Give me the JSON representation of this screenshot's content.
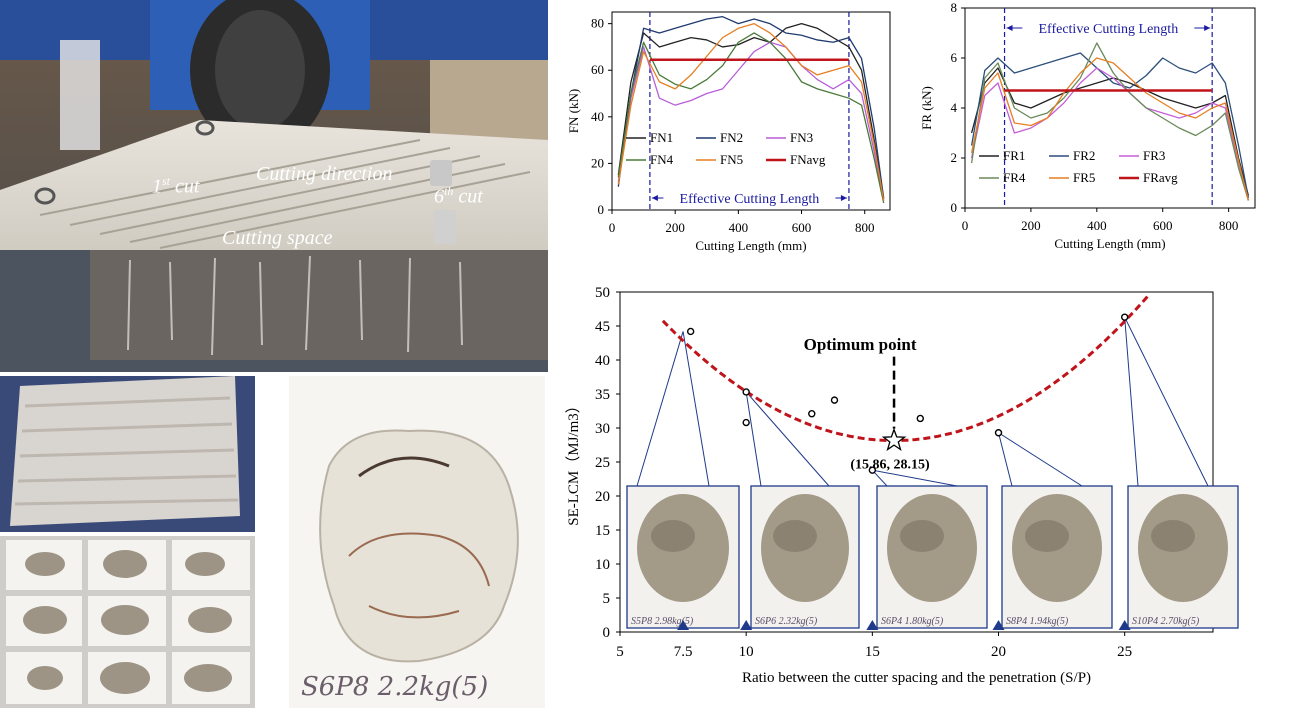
{
  "photos": {
    "main": {
      "annotations": {
        "first_cut_num": "1",
        "first_cut_sup": "st",
        "first_cut_word": "cut",
        "cutting_direction": "Cutting direction",
        "sixth_cut_num": "6",
        "sixth_cut_sup": "th",
        "sixth_cut_word": "cut",
        "cutting_space": "Cutting space"
      }
    },
    "bottom_middle": {
      "handwritten_label": "S6P8 2.2kg(5)"
    }
  },
  "charts": {
    "fn": {
      "type": "line",
      "ylabel": "FN (kN)",
      "xlabel": "Cutting Length (mm)",
      "x_ticks": [
        "0",
        "200",
        "400",
        "600",
        "800"
      ],
      "y_ticks": [
        "0",
        "20",
        "40",
        "60",
        "80"
      ],
      "annotation": "Effective Cutting Length",
      "legend": [
        "FN1",
        "FN2",
        "FN3",
        "FN4",
        "FN5",
        "FNavg"
      ],
      "colors": {
        "FN1": "#222222",
        "FN2": "#1f3a6e",
        "FN3": "#b65fd8",
        "FN4": "#4a7a3a",
        "FN5": "#e67e22",
        "FNavg": "#c0141b",
        "dashed": "#1a1aa0"
      }
    },
    "fr": {
      "type": "line",
      "ylabel": "FR (kN)",
      "xlabel": "Cutting Length (mm)",
      "x_ticks": [
        "0",
        "200",
        "400",
        "600",
        "800"
      ],
      "y_ticks": [
        "0",
        "2",
        "4",
        "6",
        "8"
      ],
      "annotation": "Effective Cutting Length",
      "legend": [
        "FR1",
        "FR2",
        "FR3",
        "FR4",
        "FR5",
        "FRavg"
      ],
      "colors": {
        "FR1": "#222222",
        "FR2": "#2c4f7a",
        "FR3": "#c55fd8",
        "FR4": "#6a8a5a",
        "FR5": "#e67e22",
        "FRavg": "#c0141b",
        "dashed": "#1a1aa0"
      }
    }
  },
  "chart_data": [
    {
      "type": "line",
      "xlabel": "Cutting Length (mm)",
      "ylabel": "FN (kN)",
      "xlim": [
        0,
        880
      ],
      "ylim": [
        0,
        85
      ],
      "effective_range": [
        120,
        750
      ],
      "series": [
        {
          "name": "FN1",
          "x": [
            20,
            60,
            100,
            150,
            200,
            250,
            300,
            350,
            400,
            450,
            500,
            550,
            600,
            650,
            700,
            750,
            790,
            830,
            860
          ],
          "y": [
            15,
            55,
            76,
            70,
            72,
            74,
            73,
            70,
            71,
            74,
            72,
            78,
            80,
            78,
            74,
            70,
            60,
            30,
            5
          ]
        },
        {
          "name": "FN2",
          "x": [
            20,
            60,
            100,
            150,
            200,
            250,
            300,
            350,
            400,
            450,
            500,
            550,
            600,
            650,
            700,
            750,
            790,
            830,
            860
          ],
          "y": [
            10,
            50,
            78,
            76,
            78,
            80,
            82,
            83,
            80,
            82,
            80,
            76,
            75,
            73,
            72,
            74,
            65,
            35,
            5
          ]
        },
        {
          "name": "FN3",
          "x": [
            20,
            60,
            100,
            150,
            200,
            250,
            300,
            350,
            400,
            450,
            500,
            550,
            600,
            650,
            700,
            750,
            790,
            830,
            860
          ],
          "y": [
            12,
            48,
            70,
            48,
            45,
            47,
            50,
            52,
            60,
            68,
            72,
            70,
            62,
            56,
            52,
            56,
            50,
            25,
            4
          ]
        },
        {
          "name": "FN4",
          "x": [
            20,
            60,
            100,
            150,
            200,
            250,
            300,
            350,
            400,
            450,
            500,
            550,
            600,
            650,
            700,
            750,
            790,
            830,
            860
          ],
          "y": [
            14,
            50,
            72,
            58,
            54,
            52,
            56,
            62,
            72,
            76,
            72,
            65,
            55,
            52,
            50,
            48,
            45,
            22,
            3
          ]
        },
        {
          "name": "FN5",
          "x": [
            20,
            60,
            100,
            150,
            200,
            250,
            300,
            350,
            400,
            450,
            500,
            550,
            600,
            650,
            700,
            750,
            790,
            830,
            860
          ],
          "y": [
            11,
            45,
            68,
            55,
            52,
            58,
            66,
            74,
            78,
            80,
            76,
            70,
            62,
            58,
            60,
            62,
            55,
            28,
            4
          ]
        },
        {
          "name": "FNavg",
          "x": [
            120,
            750
          ],
          "y": [
            64.5,
            64.5
          ]
        }
      ]
    },
    {
      "type": "line",
      "xlabel": "Cutting Length (mm)",
      "ylabel": "FR (kN)",
      "xlim": [
        0,
        880
      ],
      "ylim": [
        0,
        8
      ],
      "effective_range": [
        120,
        750
      ],
      "series": [
        {
          "name": "FR1",
          "x": [
            20,
            60,
            100,
            150,
            200,
            250,
            300,
            350,
            400,
            450,
            500,
            550,
            600,
            650,
            700,
            750,
            790,
            830,
            860
          ],
          "y": [
            3,
            5,
            5.6,
            4.2,
            4.0,
            4.3,
            4.6,
            4.8,
            5.0,
            5.2,
            5.0,
            4.7,
            4.4,
            4.2,
            4.0,
            4.2,
            4.5,
            2,
            0.5
          ]
        },
        {
          "name": "FR2",
          "x": [
            20,
            60,
            100,
            150,
            200,
            250,
            300,
            350,
            400,
            450,
            500,
            550,
            600,
            650,
            700,
            750,
            790,
            830,
            860
          ],
          "y": [
            2.5,
            5.5,
            6.0,
            5.4,
            5.6,
            5.8,
            6.0,
            6.2,
            5.6,
            5.0,
            4.8,
            5.3,
            6.0,
            5.6,
            5.4,
            5.8,
            5.0,
            2.5,
            0.4
          ]
        },
        {
          "name": "FR3",
          "x": [
            20,
            60,
            100,
            150,
            200,
            250,
            300,
            350,
            400,
            450,
            500,
            550,
            600,
            650,
            700,
            750,
            790,
            830,
            860
          ],
          "y": [
            2.0,
            4.5,
            5.0,
            3.0,
            3.2,
            3.6,
            4.2,
            5.0,
            5.6,
            5.2,
            4.6,
            4.0,
            3.8,
            3.6,
            3.8,
            4.2,
            4.0,
            1.8,
            0.3
          ]
        },
        {
          "name": "FR4",
          "x": [
            20,
            60,
            100,
            150,
            200,
            250,
            300,
            350,
            400,
            450,
            500,
            550,
            600,
            650,
            700,
            750,
            790,
            830,
            860
          ],
          "y": [
            1.8,
            5.2,
            5.8,
            4.0,
            3.6,
            3.8,
            4.4,
            5.2,
            6.6,
            5.4,
            4.6,
            4.0,
            3.6,
            3.2,
            2.9,
            3.3,
            3.8,
            1.6,
            0.3
          ]
        },
        {
          "name": "FR5",
          "x": [
            20,
            60,
            100,
            150,
            200,
            250,
            300,
            350,
            400,
            450,
            500,
            550,
            600,
            650,
            700,
            750,
            790,
            830,
            860
          ],
          "y": [
            2.2,
            4.8,
            5.4,
            3.4,
            3.3,
            3.6,
            4.6,
            5.4,
            6.0,
            5.8,
            5.2,
            4.6,
            4.2,
            3.8,
            3.6,
            4.0,
            4.2,
            1.9,
            0.3
          ]
        },
        {
          "name": "FRavg",
          "x": [
            120,
            750
          ],
          "y": [
            4.7,
            4.7
          ]
        }
      ]
    },
    {
      "type": "scatter",
      "xlabel": "Ratio between the cutter spacing and the penetration (S/P)",
      "ylabel": "SE-LCM（MJ/m3）",
      "xlim": [
        5,
        28.5
      ],
      "ylim": [
        0,
        50
      ],
      "x_ticks": [
        "5",
        "10",
        "15",
        "20",
        "25"
      ],
      "x_ticks_extra": [
        "7.5"
      ],
      "y_ticks": [
        "0",
        "5",
        "10",
        "15",
        "20",
        "25",
        "30",
        "35",
        "40",
        "45",
        "50"
      ],
      "points": [
        {
          "x": 7.8,
          "y": 44.2
        },
        {
          "x": 10,
          "y": 35.3
        },
        {
          "x": 10,
          "y": 30.8
        },
        {
          "x": 12.6,
          "y": 32.1
        },
        {
          "x": 13.5,
          "y": 34.1
        },
        {
          "x": 15,
          "y": 23.8
        },
        {
          "x": 16.9,
          "y": 31.4
        },
        {
          "x": 20,
          "y": 29.3
        },
        {
          "x": 25,
          "y": 46.3
        }
      ],
      "fit_curve": {
        "vertex_x": 15.86,
        "vertex_y": 28.15,
        "a": 0.21,
        "x_range": [
          6.7,
          27.1
        ]
      },
      "optimum": {
        "label": "Optimum point",
        "coord_label": "(15.86, 28.15)",
        "x": 15.86,
        "y": 28.15
      },
      "marker_positions": [
        7.5,
        10,
        15,
        20,
        25
      ],
      "inset_labels": [
        "S5P8 2.98kg(5)",
        "S6P6 2.32kg(5)",
        "S6P4 1.80kg(5)",
        "S8P4 1.94kg(5)",
        "S10P4 2.70kg(5)"
      ],
      "colors": {
        "curve": "#c0141b",
        "inset_border": "#1f3a8a",
        "marker": "#1f3a8a"
      }
    }
  ]
}
